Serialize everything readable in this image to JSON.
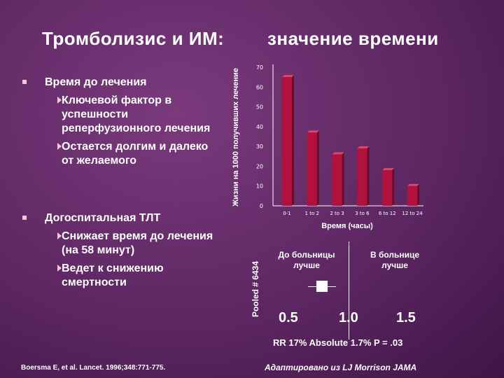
{
  "title_part1": "Тромболизис и ИМ:",
  "title_part2": "значение времени",
  "bullets": {
    "group1": {
      "main": "Время до лечения",
      "subs": [
        "Ключевой фактор в успешности реперфузионного лечения",
        "Остается долгим и далеко от желаемого"
      ]
    },
    "group2": {
      "main": "Догоспитальная ТЛТ",
      "subs": [
        "Снижает время до лечения (на 58 минут)",
        "Ведет к снижению смертности"
      ]
    }
  },
  "chart_data": {
    "type": "bar",
    "categories": [
      "0-1",
      "1 to 2",
      "2 to 3",
      "3 to 6",
      "6 to 12",
      "12 to 24"
    ],
    "values": [
      65,
      37,
      26,
      29,
      18,
      10
    ],
    "ylabel": "Жизни на 1000 получивших лечение",
    "xlabel": "Время (часы)",
    "ylim": [
      0,
      70
    ],
    "yticks": [
      0,
      10,
      20,
      30,
      40,
      50,
      60,
      70
    ],
    "bar_color": "#b0123d",
    "grid": false
  },
  "forest": {
    "side_label": "Pooled # 6434",
    "left_label": "До больницы лучше",
    "right_label": "В больнице лучше",
    "ticks": [
      "0.5",
      "1.0",
      "1.5"
    ],
    "stats": "RR 17%  Absolute 1.7%  P = .03"
  },
  "ref_left": "Boersma E, et al. Lancet. 1996;348:771-775.",
  "ref_right": "Адаптировано из  LJ Morrison JAMA"
}
